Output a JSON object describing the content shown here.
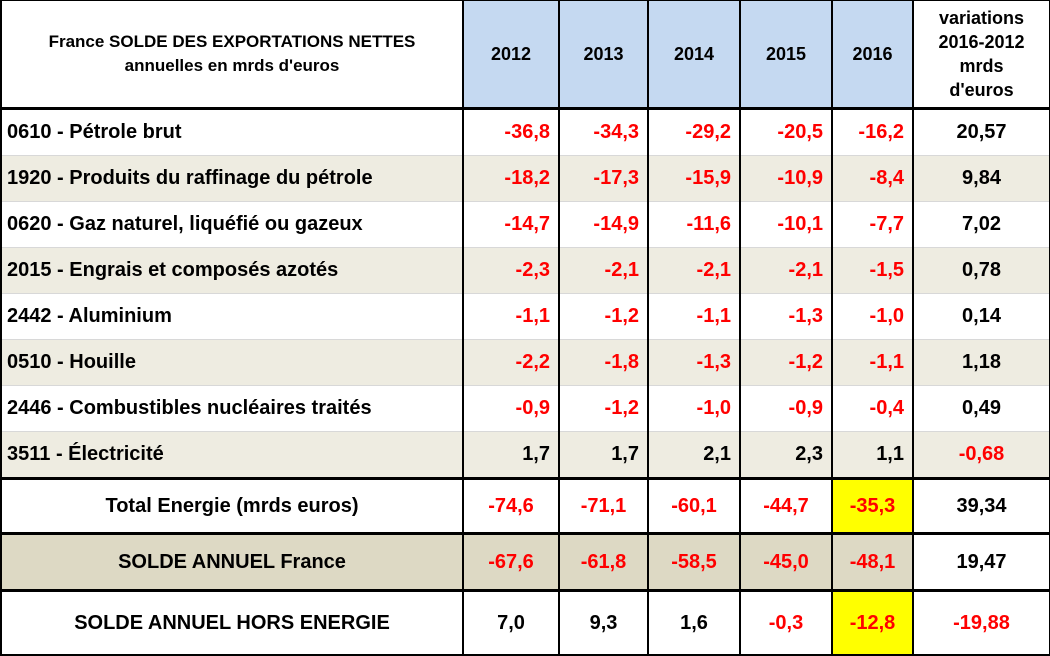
{
  "chart_data": {
    "type": "table",
    "title_line1": "France SOLDE DES EXPORTATIONS NETTES",
    "title_line2": "annuelles en mrds d'euros",
    "columns": [
      "2012",
      "2013",
      "2014",
      "2015",
      "2016"
    ],
    "variation_header": [
      "variations",
      "2016-2012",
      "mrds",
      "d'euros"
    ],
    "rows": [
      {
        "label": "0610 - Pétrole brut",
        "values": [
          "-36,8",
          "-34,3",
          "-29,2",
          "-20,5",
          "-16,2"
        ],
        "variation": "20,57"
      },
      {
        "label": "1920 - Produits du raffinage du pétrole",
        "values": [
          "-18,2",
          "-17,3",
          "-15,9",
          "-10,9",
          "-8,4"
        ],
        "variation": "9,84"
      },
      {
        "label": "0620 - Gaz naturel, liquéfié ou gazeux",
        "values": [
          "-14,7",
          "-14,9",
          "-11,6",
          "-10,1",
          "-7,7"
        ],
        "variation": "7,02"
      },
      {
        "label": "2015 - Engrais et composés azotés",
        "values": [
          "-2,3",
          "-2,1",
          "-2,1",
          "-2,1",
          "-1,5"
        ],
        "variation": "0,78"
      },
      {
        "label": "2442 - Aluminium",
        "values": [
          "-1,1",
          "-1,2",
          "-1,1",
          "-1,3",
          "-1,0"
        ],
        "variation": "0,14"
      },
      {
        "label": "0510 - Houille",
        "values": [
          "-2,2",
          "-1,8",
          "-1,3",
          "-1,2",
          "-1,1"
        ],
        "variation": "1,18"
      },
      {
        "label": "2446 - Combustibles nucléaires traités",
        "values": [
          "-0,9",
          "-1,2",
          "-1,0",
          "-0,9",
          "-0,4"
        ],
        "variation": "0,49"
      },
      {
        "label": "3511 - Électricité",
        "values": [
          "1,7",
          "1,7",
          "2,1",
          "2,3",
          "1,1"
        ],
        "variation": "-0,68"
      }
    ],
    "totals": [
      {
        "label": "Total Energie (mrds euros)",
        "values": [
          "-74,6",
          "-71,1",
          "-60,1",
          "-44,7",
          "-35,3"
        ],
        "variation": "39,34",
        "highlight_2016": true
      },
      {
        "label": "SOLDE ANNUEL France",
        "values": [
          "-67,6",
          "-61,8",
          "-58,5",
          "-45,0",
          "-48,1"
        ],
        "variation": "19,47",
        "highlight_2016": false
      },
      {
        "label": "SOLDE ANNUEL HORS ENERGIE",
        "values": [
          "7,0",
          "9,3",
          "1,6",
          "-0,3",
          "-12,8"
        ],
        "variation": "-19,88",
        "highlight_2016": true
      }
    ],
    "colors": {
      "negative": "#ff0000",
      "header_years": "#c5d9f1",
      "alt_row": "#eeece1",
      "solde_row": "#ddd9c4",
      "highlight": "#ffff00"
    }
  }
}
